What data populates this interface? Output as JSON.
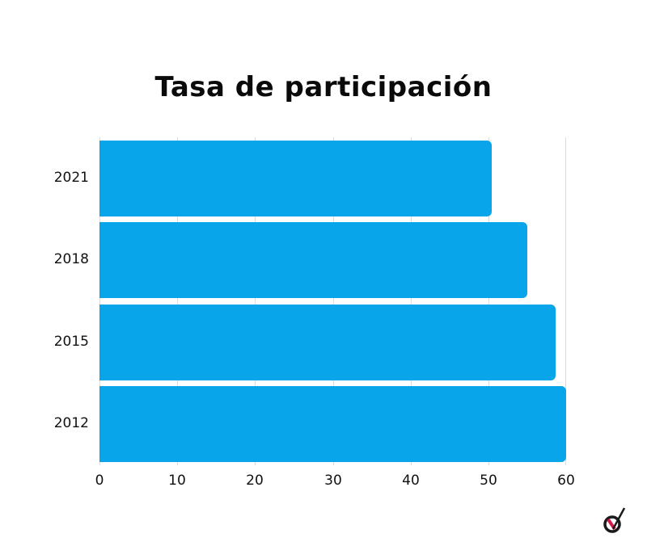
{
  "chart_data": {
    "type": "bar",
    "orientation": "horizontal",
    "title": "Tasa de participación",
    "categories": [
      "2021",
      "2018",
      "2015",
      "2012"
    ],
    "values": [
      50.4,
      55.0,
      58.6,
      60.0
    ],
    "xlabel": "",
    "ylabel": "",
    "xlim": [
      0,
      60
    ],
    "x_ticks": [
      "0",
      "10",
      "20",
      "30",
      "40",
      "50",
      "60"
    ],
    "grid": true,
    "legend": null,
    "bar_color": "#08a5ea"
  },
  "logo": {
    "icon": "checkmark-ballot-icon",
    "accent": "#d6194b"
  }
}
